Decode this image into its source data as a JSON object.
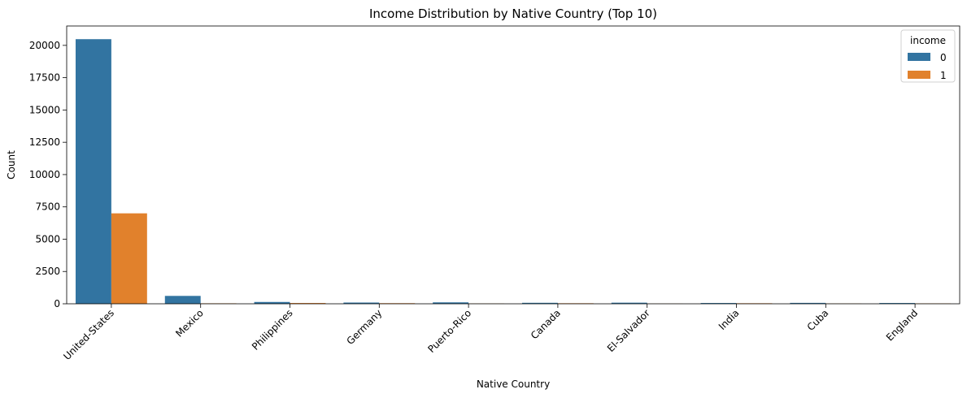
{
  "chart_data": {
    "type": "bar",
    "title": "Income Distribution by Native Country (Top 10)",
    "xlabel": "Native Country",
    "ylabel": "Count",
    "ylim": [
      0,
      21500
    ],
    "yticks": [
      0,
      2500,
      5000,
      7500,
      10000,
      12500,
      15000,
      17500,
      20000
    ],
    "categories": [
      "United-States",
      "Mexico",
      "Philippines",
      "Germany",
      "Puerto-Rico",
      "Canada",
      "El-Salvador",
      "India",
      "Cuba",
      "England"
    ],
    "legend": {
      "title": "income",
      "position": "top-right"
    },
    "series": [
      {
        "name": "0",
        "color": "#3274a1",
        "values": [
          20480,
          610,
          140,
          95,
          110,
          75,
          85,
          60,
          70,
          60
        ]
      },
      {
        "name": "1",
        "color": "#e1812c",
        "values": [
          7000,
          35,
          60,
          45,
          20,
          40,
          10,
          40,
          20,
          30
        ]
      }
    ],
    "grid": false
  }
}
